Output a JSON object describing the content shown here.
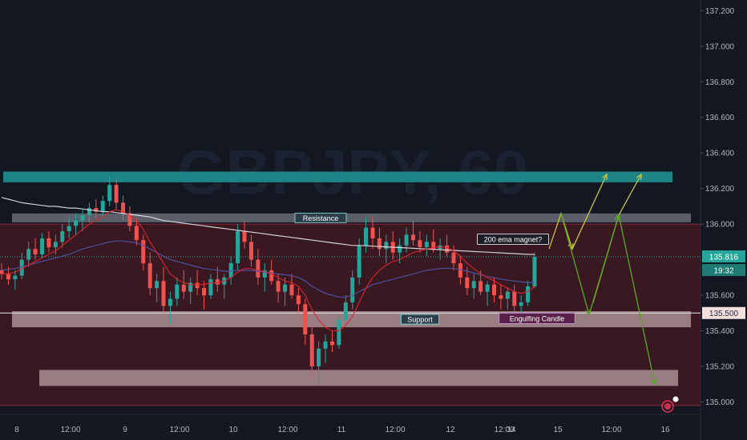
{
  "chart_data": {
    "type": "candlestick",
    "symbol_watermark": "GBPJPY, 60",
    "y_ticks": [
      135.0,
      135.2,
      135.4,
      135.6,
      135.8,
      136.0,
      136.2,
      136.4,
      136.6,
      136.8,
      137.0,
      137.2
    ],
    "y_tick_labels": [
      "135.000",
      "135.200",
      "135.400",
      "135.600",
      "135.800",
      "136.000",
      "136.200",
      "136.400",
      "136.600",
      "136.800",
      "137.000",
      "137.200"
    ],
    "ylim": [
      134.93,
      137.26
    ],
    "x_ticks": [
      "8",
      "12:00",
      "9",
      "12:00",
      "10",
      "12:00",
      "11",
      "12:00",
      "12",
      "12:00",
      "14",
      "15",
      "12:00",
      "16"
    ],
    "current_price": 135.816,
    "current_price_label": "135.816",
    "countdown_label": "19:32",
    "marked_price": 135.5,
    "marked_price_label": "135.500",
    "zones": [
      {
        "name": "top-zone",
        "y_top": 136.295,
        "y_bottom": 136.235,
        "color": "#1e8a8c"
      },
      {
        "name": "resistance-zone",
        "y_top": 136.06,
        "y_bottom": 136.01,
        "color": "#8c8f99",
        "label": "Resistance"
      },
      {
        "name": "support-zone",
        "y_top": 135.51,
        "y_bottom": 135.42,
        "color": "#d8c2c4",
        "label": "Support"
      },
      {
        "name": "lower-zone",
        "y_top": 135.18,
        "y_bottom": 135.09,
        "color": "#d8c2c4"
      }
    ],
    "range_box": {
      "y_top": 136.0,
      "y_bottom": 134.98,
      "color": "#5a1a22"
    },
    "annotations": [
      {
        "text": "200 ema magnet?",
        "price": 135.915
      },
      {
        "text": "Engulfing Candle",
        "price": 135.47
      }
    ],
    "candles": [
      [
        135.74,
        135.78,
        135.69,
        135.72
      ],
      [
        135.72,
        135.76,
        135.66,
        135.69
      ],
      [
        135.69,
        135.74,
        135.63,
        135.71
      ],
      [
        135.71,
        135.84,
        135.69,
        135.8
      ],
      [
        135.8,
        135.9,
        135.76,
        135.86
      ],
      [
        135.86,
        135.92,
        135.8,
        135.83
      ],
      [
        135.83,
        135.95,
        135.81,
        135.92
      ],
      [
        135.92,
        135.96,
        135.84,
        135.87
      ],
      [
        135.87,
        135.94,
        135.83,
        135.9
      ],
      [
        135.9,
        136.0,
        135.87,
        135.96
      ],
      [
        135.96,
        136.04,
        135.92,
        135.99
      ],
      [
        135.99,
        136.06,
        135.94,
        136.02
      ],
      [
        136.02,
        136.08,
        135.96,
        136.05
      ],
      [
        136.05,
        136.12,
        136.01,
        136.09
      ],
      [
        136.09,
        136.14,
        136.03,
        136.07
      ],
      [
        136.07,
        136.16,
        136.04,
        136.13
      ],
      [
        136.13,
        136.27,
        136.1,
        136.22
      ],
      [
        136.22,
        136.25,
        136.08,
        136.12
      ],
      [
        136.12,
        136.16,
        136.02,
        136.06
      ],
      [
        136.06,
        136.1,
        135.96,
        135.99
      ],
      [
        135.99,
        136.03,
        135.88,
        135.91
      ],
      [
        135.91,
        135.94,
        135.74,
        135.78
      ],
      [
        135.78,
        135.84,
        135.6,
        135.64
      ],
      [
        135.64,
        135.72,
        135.56,
        135.68
      ],
      [
        135.68,
        135.76,
        135.5,
        135.54
      ],
      [
        135.54,
        135.62,
        135.44,
        135.58
      ],
      [
        135.58,
        135.7,
        135.54,
        135.66
      ],
      [
        135.66,
        135.74,
        135.58,
        135.62
      ],
      [
        135.62,
        135.7,
        135.55,
        135.67
      ],
      [
        135.67,
        135.74,
        135.6,
        135.64
      ],
      [
        135.64,
        135.68,
        135.52,
        135.6
      ],
      [
        135.6,
        135.72,
        135.58,
        135.69
      ],
      [
        135.69,
        135.76,
        135.62,
        135.66
      ],
      [
        135.66,
        135.72,
        135.58,
        135.7
      ],
      [
        135.7,
        135.82,
        135.66,
        135.78
      ],
      [
        135.78,
        136.0,
        135.74,
        135.96
      ],
      [
        135.96,
        136.02,
        135.86,
        135.9
      ],
      [
        135.9,
        135.94,
        135.76,
        135.8
      ],
      [
        135.8,
        135.86,
        135.66,
        135.7
      ],
      [
        135.7,
        135.78,
        135.62,
        135.74
      ],
      [
        135.74,
        135.8,
        135.66,
        135.68
      ],
      [
        135.68,
        135.72,
        135.56,
        135.62
      ],
      [
        135.62,
        135.7,
        135.54,
        135.66
      ],
      [
        135.66,
        135.72,
        135.58,
        135.6
      ],
      [
        135.6,
        135.64,
        135.5,
        135.55
      ],
      [
        135.55,
        135.58,
        135.32,
        135.38
      ],
      [
        135.38,
        135.44,
        135.12,
        135.2
      ],
      [
        135.2,
        135.34,
        135.1,
        135.3
      ],
      [
        135.3,
        135.38,
        135.22,
        135.34
      ],
      [
        135.34,
        135.4,
        135.28,
        135.32
      ],
      [
        135.32,
        135.48,
        135.3,
        135.46
      ],
      [
        135.46,
        135.6,
        135.42,
        135.56
      ],
      [
        135.56,
        135.74,
        135.52,
        135.7
      ],
      [
        135.7,
        135.92,
        135.66,
        135.88
      ],
      [
        135.88,
        136.04,
        135.84,
        135.98
      ],
      [
        135.98,
        136.04,
        135.86,
        135.92
      ],
      [
        135.92,
        135.98,
        135.82,
        135.86
      ],
      [
        135.86,
        135.94,
        135.78,
        135.9
      ],
      [
        135.9,
        135.96,
        135.8,
        135.84
      ],
      [
        135.84,
        135.92,
        135.78,
        135.88
      ],
      [
        135.88,
        135.98,
        135.84,
        135.94
      ],
      [
        135.94,
        136.02,
        135.88,
        135.91
      ],
      [
        135.91,
        135.96,
        135.84,
        135.87
      ],
      [
        135.87,
        135.94,
        135.82,
        135.9
      ],
      [
        135.9,
        135.97,
        135.84,
        135.86
      ],
      [
        135.86,
        135.92,
        135.8,
        135.88
      ],
      [
        135.88,
        135.94,
        135.82,
        135.84
      ],
      [
        135.84,
        135.88,
        135.74,
        135.78
      ],
      [
        135.78,
        135.82,
        135.66,
        135.7
      ],
      [
        135.7,
        135.76,
        135.6,
        135.64
      ],
      [
        135.64,
        135.72,
        135.58,
        135.68
      ],
      [
        135.68,
        135.74,
        135.6,
        135.62
      ],
      [
        135.62,
        135.68,
        135.54,
        135.66
      ],
      [
        135.66,
        135.7,
        135.56,
        135.6
      ],
      [
        135.6,
        135.66,
        135.52,
        135.58
      ],
      [
        135.58,
        135.64,
        135.52,
        135.62
      ],
      [
        135.62,
        135.66,
        135.5,
        135.54
      ],
      [
        135.54,
        135.6,
        135.5,
        135.56
      ],
      [
        135.56,
        135.68,
        135.54,
        135.65
      ],
      [
        135.65,
        135.84,
        135.64,
        135.816
      ]
    ],
    "series": [
      {
        "name": "",
        "color": "#e2e3e8",
        "values": [
          136.15,
          136.14,
          136.13,
          136.12,
          136.115,
          136.11,
          136.105,
          136.1,
          136.1,
          136.095,
          136.09,
          136.09,
          136.085,
          136.08,
          136.075,
          136.07,
          136.07,
          136.065,
          136.06,
          136.055,
          136.05,
          136.045,
          136.04,
          136.03,
          136.02,
          136.015,
          136.01,
          136.005,
          136.0,
          135.995,
          135.99,
          135.985,
          135.98,
          135.975,
          135.97,
          135.965,
          135.96,
          135.955,
          135.95,
          135.945,
          135.94,
          135.935,
          135.93,
          135.925,
          135.92,
          135.915,
          135.91,
          135.905,
          135.9,
          135.895,
          135.89,
          135.885,
          135.88,
          135.88,
          135.878,
          135.876,
          135.874,
          135.872,
          135.87,
          135.868,
          135.866,
          135.864,
          135.862,
          135.86,
          135.858,
          135.856,
          135.854,
          135.852,
          135.85,
          135.848,
          135.846,
          135.844,
          135.842,
          135.84,
          135.838,
          135.836,
          135.834,
          135.832,
          135.83,
          135.829
        ]
      },
      {
        "name": "",
        "color": "#5157a8",
        "values": [
          135.74,
          135.745,
          135.75,
          135.76,
          135.77,
          135.78,
          135.79,
          135.8,
          135.81,
          135.82,
          135.83,
          135.845,
          135.86,
          135.87,
          135.88,
          135.89,
          135.9,
          135.905,
          135.905,
          135.9,
          135.895,
          135.88,
          135.86,
          135.84,
          135.82,
          135.8,
          135.79,
          135.78,
          135.77,
          135.76,
          135.75,
          135.745,
          135.74,
          135.735,
          135.735,
          135.74,
          135.74,
          135.74,
          135.735,
          135.73,
          135.725,
          135.72,
          135.715,
          135.71,
          135.7,
          135.68,
          135.65,
          135.63,
          135.61,
          135.6,
          135.59,
          135.59,
          135.6,
          135.62,
          135.64,
          135.66,
          135.67,
          135.68,
          135.69,
          135.7,
          135.71,
          135.72,
          135.73,
          135.74,
          135.745,
          135.75,
          135.752,
          135.75,
          135.745,
          135.735,
          135.725,
          135.715,
          135.705,
          135.7,
          135.69,
          135.685,
          135.68,
          135.675,
          135.672,
          135.672
        ]
      },
      {
        "name": "",
        "color": "#e0242e",
        "values": [
          135.72,
          135.72,
          135.73,
          135.75,
          135.77,
          135.79,
          135.81,
          135.83,
          135.85,
          135.88,
          135.91,
          135.94,
          135.97,
          136.0,
          136.02,
          136.04,
          136.07,
          136.08,
          136.07,
          136.05,
          136.02,
          135.97,
          135.9,
          135.84,
          135.78,
          135.72,
          135.69,
          135.67,
          135.66,
          135.66,
          135.66,
          135.67,
          135.67,
          135.68,
          135.7,
          135.73,
          135.75,
          135.75,
          135.74,
          135.73,
          135.72,
          135.7,
          135.68,
          135.67,
          135.65,
          135.6,
          135.52,
          135.46,
          135.42,
          135.4,
          135.4,
          135.43,
          135.48,
          135.56,
          135.64,
          135.7,
          135.74,
          135.77,
          135.79,
          135.8,
          135.82,
          135.84,
          135.85,
          135.86,
          135.87,
          135.87,
          135.87,
          135.85,
          135.82,
          135.78,
          135.75,
          135.72,
          135.7,
          135.68,
          135.66,
          135.64,
          135.62,
          135.61,
          135.62,
          135.65
        ]
      }
    ],
    "projection_paths": [
      {
        "color": "#c9c43a",
        "points": [
          [
            685,
            135.86
          ],
          [
            700,
            136.06
          ],
          [
            714,
            135.86
          ]
        ]
      },
      {
        "color": "#c9c43a",
        "points": [
          [
            714,
            135.86
          ],
          [
            757,
            136.28
          ]
        ]
      },
      {
        "color": "#c9c43a",
        "points": [
          [
            740,
            135.56
          ],
          [
            772,
            136.05
          ]
        ]
      },
      {
        "color": "#c9c43a",
        "points": [
          [
            772,
            136.05
          ],
          [
            800,
            136.28
          ]
        ]
      },
      {
        "color": "#5aa821",
        "points": [
          [
            700,
            136.06
          ],
          [
            735,
            135.49
          ]
        ]
      },
      {
        "color": "#5aa821",
        "points": [
          [
            735,
            135.49
          ],
          [
            772,
            136.05
          ]
        ]
      },
      {
        "color": "#5aa821",
        "points": [
          [
            772,
            136.05
          ],
          [
            817,
            135.1
          ]
        ]
      }
    ]
  }
}
